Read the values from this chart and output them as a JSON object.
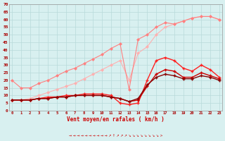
{
  "x": [
    0,
    1,
    2,
    3,
    4,
    5,
    6,
    7,
    8,
    9,
    10,
    11,
    12,
    13,
    14,
    15,
    16,
    17,
    18,
    19,
    20,
    21,
    22,
    23
  ],
  "line1_color": "#ffb0b0",
  "line2_color": "#ff8080",
  "line3_color": "#ff2020",
  "line4_color": "#cc0000",
  "line5_color": "#880000",
  "line1": [
    7,
    7,
    8,
    10,
    12,
    14,
    16,
    18,
    21,
    24,
    27,
    30,
    33,
    20,
    38,
    42,
    50,
    55,
    57,
    59,
    61,
    62,
    62,
    60
  ],
  "line2": [
    20,
    15,
    15,
    18,
    20,
    23,
    26,
    28,
    31,
    34,
    37,
    41,
    44,
    14,
    47,
    50,
    55,
    58,
    57,
    59,
    61,
    62,
    62,
    60
  ],
  "line3": [
    7,
    7,
    7,
    8,
    9,
    9,
    10,
    10,
    11,
    11,
    11,
    10,
    5,
    4,
    5,
    20,
    33,
    35,
    33,
    28,
    26,
    30,
    27,
    22
  ],
  "line4": [
    7,
    7,
    7,
    8,
    8,
    9,
    9,
    10,
    10,
    10,
    10,
    9,
    8,
    6,
    7,
    16,
    24,
    27,
    26,
    22,
    22,
    25,
    23,
    21
  ],
  "line5": [
    7,
    7,
    7,
    8,
    8,
    9,
    9,
    10,
    10,
    10,
    10,
    9,
    8,
    6,
    8,
    17,
    22,
    24,
    23,
    21,
    21,
    23,
    22,
    20
  ],
  "ylim": [
    0,
    70
  ],
  "xlim": [
    -0.3,
    23.3
  ],
  "yticks": [
    0,
    5,
    10,
    15,
    20,
    25,
    30,
    35,
    40,
    45,
    50,
    55,
    60,
    65,
    70
  ],
  "xticks": [
    0,
    1,
    2,
    3,
    4,
    5,
    6,
    7,
    8,
    9,
    10,
    11,
    12,
    13,
    14,
    15,
    16,
    17,
    18,
    19,
    20,
    21,
    22,
    23
  ],
  "xlabel": "Vent moyen/en rafales ( km/h )",
  "bg_color": "#d8f0f0",
  "grid_color": "#b8dada"
}
